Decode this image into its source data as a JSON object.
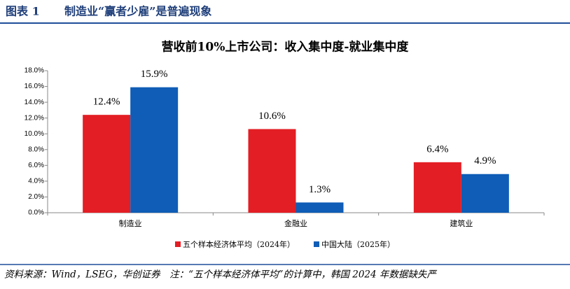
{
  "header": {
    "label": "图表 1",
    "title": "制造业“赢者少雇”是普遍现象"
  },
  "chart_data": {
    "type": "bar",
    "title": "营收前10%上市公司：收入集中度-就业集中度",
    "categories": [
      "制造业",
      "金融业",
      "建筑业"
    ],
    "series": [
      {
        "name": "五个样本经济体平均（2024年）",
        "color": "#e31e24",
        "values": [
          12.4,
          10.6,
          6.4
        ],
        "value_labels": [
          "12.4%",
          "10.6%",
          "6.4%"
        ]
      },
      {
        "name": "中国大陆（2025年）",
        "color": "#0f5db6",
        "values": [
          15.9,
          1.3,
          4.9
        ],
        "value_labels": [
          "15.9%",
          "1.3%",
          "4.9%"
        ]
      }
    ],
    "ylim": [
      0,
      18
    ],
    "yticks": [
      {
        "value": 0,
        "label": "0.0%"
      },
      {
        "value": 2,
        "label": "2.0%"
      },
      {
        "value": 4,
        "label": "4.0%"
      },
      {
        "value": 6,
        "label": "6.0%"
      },
      {
        "value": 8,
        "label": "8.0%"
      },
      {
        "value": 10,
        "label": "10.0%"
      },
      {
        "value": 12,
        "label": "12.0%"
      },
      {
        "value": 14,
        "label": "14.0%"
      },
      {
        "value": 16,
        "label": "16.0%"
      },
      {
        "value": 18,
        "label": "18.0%"
      }
    ],
    "legend": "bottom"
  },
  "footer": {
    "source": "资料来源：Wind，LSEG，华创证券　注：“五个样本经济体平均”的计算中，韩国 2024 年数据缺失严"
  }
}
